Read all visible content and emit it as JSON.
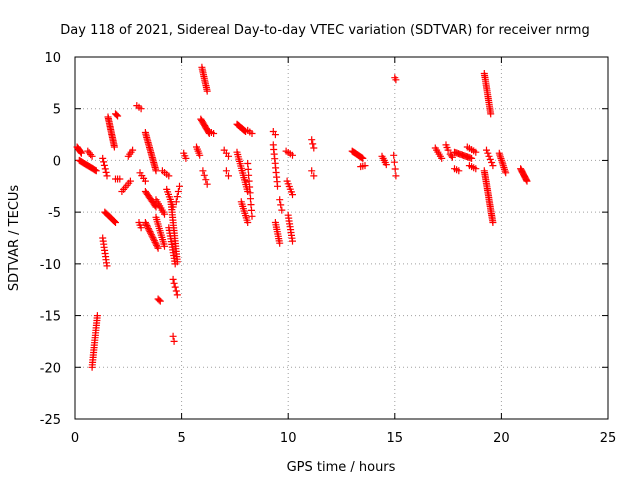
{
  "chart_data": {
    "type": "scatter",
    "title": "Day 118 of 2021, Sidereal Day-to-day VTEC variation (SDTVAR) for receiver nrmg",
    "xlabel": "GPS time / hours",
    "ylabel": "SDTVAR / TECUs",
    "xlim": [
      0,
      25
    ],
    "ylim": [
      -25,
      10
    ],
    "xticks": [
      0,
      5,
      10,
      15,
      20,
      25
    ],
    "yticks": [
      -25,
      -20,
      -15,
      -10,
      -5,
      0,
      5,
      10
    ],
    "grid": true,
    "marker": "+",
    "colors": {
      "series": "#ff0000",
      "grid": "#a0a0a0",
      "axis": "#000000"
    },
    "series": [
      {
        "name": "nrmg",
        "segments": [
          {
            "x0": 0.1,
            "x1": 0.3,
            "y0": 1.3,
            "y1": 0.7,
            "n": 8
          },
          {
            "x0": 0.2,
            "x1": 1.0,
            "y0": 0.0,
            "y1": -1.0,
            "n": 18
          },
          {
            "x0": 0.6,
            "x1": 0.8,
            "y0": 0.9,
            "y1": 0.4,
            "n": 4
          },
          {
            "x0": 0.8,
            "x1": 1.05,
            "y0": -20.0,
            "y1": -15.0,
            "n": 22
          },
          {
            "x0": 1.3,
            "x1": 1.5,
            "y0": 0.2,
            "y1": -1.5,
            "n": 6
          },
          {
            "x0": 1.3,
            "x1": 1.5,
            "y0": -7.5,
            "y1": -10.2,
            "n": 10
          },
          {
            "x0": 1.4,
            "x1": 1.9,
            "y0": -5.0,
            "y1": -6.0,
            "n": 12
          },
          {
            "x0": 1.55,
            "x1": 1.85,
            "y0": 4.2,
            "y1": 1.3,
            "n": 20
          },
          {
            "x0": 1.9,
            "x1": 2.0,
            "y0": 4.5,
            "y1": 4.3,
            "n": 3
          },
          {
            "x0": 1.9,
            "x1": 2.1,
            "y0": -1.8,
            "y1": -1.8,
            "n": 3
          },
          {
            "x0": 2.2,
            "x1": 2.6,
            "y0": -3.0,
            "y1": -2.0,
            "n": 6
          },
          {
            "x0": 2.5,
            "x1": 2.7,
            "y0": 0.4,
            "y1": 1.0,
            "n": 4
          },
          {
            "x0": 2.9,
            "x1": 3.1,
            "y0": 5.3,
            "y1": 5.0,
            "n": 3
          },
          {
            "x0": 3.0,
            "x1": 3.1,
            "y0": -6.0,
            "y1": -6.5,
            "n": 3
          },
          {
            "x0": 3.05,
            "x1": 3.3,
            "y0": -1.2,
            "y1": -2.0,
            "n": 4
          },
          {
            "x0": 3.3,
            "x1": 3.8,
            "y0": 2.7,
            "y1": -1.0,
            "n": 24
          },
          {
            "x0": 3.3,
            "x1": 3.8,
            "y0": -3.0,
            "y1": -4.5,
            "n": 12
          },
          {
            "x0": 3.3,
            "x1": 3.9,
            "y0": -6.0,
            "y1": -8.5,
            "n": 18
          },
          {
            "x0": 3.8,
            "x1": 4.2,
            "y0": -5.5,
            "y1": -8.3,
            "n": 14
          },
          {
            "x0": 3.9,
            "x1": 4.0,
            "y0": -13.4,
            "y1": -13.6,
            "n": 3
          },
          {
            "x0": 3.8,
            "x1": 4.2,
            "y0": -3.8,
            "y1": -5.2,
            "n": 8
          },
          {
            "x0": 4.1,
            "x1": 4.4,
            "y0": -1.0,
            "y1": -1.5,
            "n": 4
          },
          {
            "x0": 4.3,
            "x1": 4.6,
            "y0": -2.8,
            "y1": -4.5,
            "n": 8
          },
          {
            "x0": 4.4,
            "x1": 4.7,
            "y0": -6.5,
            "y1": -10.0,
            "n": 14
          },
          {
            "x0": 4.5,
            "x1": 4.8,
            "y0": -4.0,
            "y1": -9.8,
            "n": 24
          },
          {
            "x0": 4.6,
            "x1": 4.8,
            "y0": -11.5,
            "y1": -13.0,
            "n": 5
          },
          {
            "x0": 4.6,
            "x1": 4.65,
            "y0": -17.0,
            "y1": -17.5,
            "n": 2
          },
          {
            "x0": 4.75,
            "x1": 4.9,
            "y0": -4.0,
            "y1": -2.5,
            "n": 4
          },
          {
            "x0": 5.1,
            "x1": 5.2,
            "y0": 0.7,
            "y1": 0.2,
            "n": 3
          },
          {
            "x0": 5.7,
            "x1": 5.85,
            "y0": 1.3,
            "y1": 0.5,
            "n": 5
          },
          {
            "x0": 5.95,
            "x1": 6.2,
            "y0": 9.0,
            "y1": 6.7,
            "n": 14
          },
          {
            "x0": 5.9,
            "x1": 6.3,
            "y0": 4.0,
            "y1": 2.6,
            "n": 12
          },
          {
            "x0": 6.0,
            "x1": 6.2,
            "y0": -1.0,
            "y1": -2.3,
            "n": 4
          },
          {
            "x0": 6.3,
            "x1": 6.5,
            "y0": 2.8,
            "y1": 2.6,
            "n": 3
          },
          {
            "x0": 7.0,
            "x1": 7.2,
            "y0": 1.0,
            "y1": 0.4,
            "n": 3
          },
          {
            "x0": 7.1,
            "x1": 7.2,
            "y0": -1.0,
            "y1": -1.5,
            "n": 2
          },
          {
            "x0": 7.6,
            "x1": 8.0,
            "y0": 3.5,
            "y1": 2.8,
            "n": 12
          },
          {
            "x0": 7.6,
            "x1": 8.1,
            "y0": 0.8,
            "y1": -3.0,
            "n": 18
          },
          {
            "x0": 7.8,
            "x1": 8.1,
            "y0": -4.0,
            "y1": -6.0,
            "n": 10
          },
          {
            "x0": 8.1,
            "x1": 8.3,
            "y0": 2.9,
            "y1": 2.6,
            "n": 3
          },
          {
            "x0": 8.1,
            "x1": 8.3,
            "y0": -0.3,
            "y1": -5.4,
            "n": 10
          },
          {
            "x0": 9.3,
            "x1": 9.4,
            "y0": 2.8,
            "y1": 2.5,
            "n": 2
          },
          {
            "x0": 9.3,
            "x1": 9.5,
            "y0": 1.5,
            "y1": -2.5,
            "n": 10
          },
          {
            "x0": 9.4,
            "x1": 9.6,
            "y0": -6.0,
            "y1": -8.0,
            "n": 10
          },
          {
            "x0": 9.6,
            "x1": 9.7,
            "y0": -3.8,
            "y1": -4.8,
            "n": 3
          },
          {
            "x0": 9.9,
            "x1": 10.2,
            "y0": 0.9,
            "y1": 0.5,
            "n": 4
          },
          {
            "x0": 9.95,
            "x1": 10.2,
            "y0": -2.0,
            "y1": -3.3,
            "n": 6
          },
          {
            "x0": 10.0,
            "x1": 10.2,
            "y0": -5.3,
            "y1": -7.8,
            "n": 10
          },
          {
            "x0": 11.1,
            "x1": 11.2,
            "y0": 2.0,
            "y1": 1.2,
            "n": 3
          },
          {
            "x0": 11.1,
            "x1": 11.2,
            "y0": -1.0,
            "y1": -1.5,
            "n": 2
          },
          {
            "x0": 13.0,
            "x1": 13.5,
            "y0": 0.9,
            "y1": 0.2,
            "n": 14
          },
          {
            "x0": 13.4,
            "x1": 13.6,
            "y0": -0.6,
            "y1": -0.5,
            "n": 3
          },
          {
            "x0": 14.4,
            "x1": 14.6,
            "y0": 0.4,
            "y1": -0.4,
            "n": 5
          },
          {
            "x0": 14.95,
            "x1": 15.05,
            "y0": 0.5,
            "y1": -1.5,
            "n": 4
          },
          {
            "x0": 15.0,
            "x1": 15.05,
            "y0": 8.0,
            "y1": 7.8,
            "n": 2
          },
          {
            "x0": 16.9,
            "x1": 17.2,
            "y0": 1.2,
            "y1": 0.2,
            "n": 6
          },
          {
            "x0": 17.4,
            "x1": 17.5,
            "y0": 1.5,
            "y1": 1.0,
            "n": 3
          },
          {
            "x0": 17.6,
            "x1": 17.7,
            "y0": 0.6,
            "y1": 0.3,
            "n": 3
          },
          {
            "x0": 17.8,
            "x1": 18.6,
            "y0": 0.8,
            "y1": 0.2,
            "n": 14
          },
          {
            "x0": 17.8,
            "x1": 18.0,
            "y0": -0.8,
            "y1": -1.0,
            "n": 3
          },
          {
            "x0": 18.4,
            "x1": 18.8,
            "y0": 1.3,
            "y1": 0.8,
            "n": 5
          },
          {
            "x0": 18.5,
            "x1": 18.8,
            "y0": -0.5,
            "y1": -0.8,
            "n": 4
          },
          {
            "x0": 19.2,
            "x1": 19.5,
            "y0": 8.4,
            "y1": 4.5,
            "n": 22
          },
          {
            "x0": 19.3,
            "x1": 19.6,
            "y0": 1.0,
            "y1": -0.5,
            "n": 6
          },
          {
            "x0": 19.2,
            "x1": 19.6,
            "y0": -1.0,
            "y1": -6.0,
            "n": 30
          },
          {
            "x0": 19.9,
            "x1": 20.2,
            "y0": 0.7,
            "y1": -1.2,
            "n": 12
          },
          {
            "x0": 20.9,
            "x1": 21.2,
            "y0": -0.8,
            "y1": -2.0,
            "n": 12
          }
        ]
      }
    ]
  }
}
